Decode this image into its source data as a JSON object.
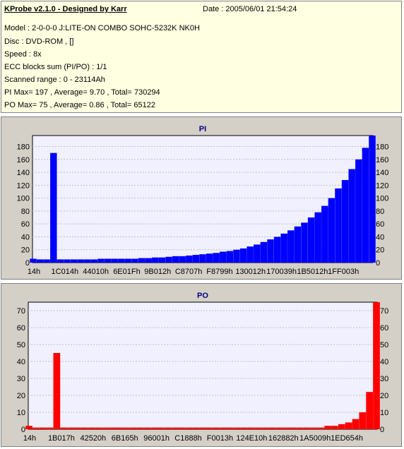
{
  "info": {
    "title": "KProbe v2.1.0 - Designed by Karr",
    "date": "Date : 2005/06/01 21:54:24",
    "lines": [
      "Model : 2-0-0-0 J:LITE-ON COMBO SOHC-5232K NK0H",
      "Disc : DVD-ROM ,  []",
      "Speed : 8x",
      "ECC blocks sum (PI/PO) : 1/1",
      "Scanned range : 0 - 23114Ah",
      "PI Max= 197 , Average= 9.70 , Total= 730294",
      "PO Max= 75 , Average= 0.86 , Total= 65122"
    ]
  },
  "chart_data": [
    {
      "type": "bar",
      "title": "PI",
      "color": "#0000ff",
      "ylim": [
        0,
        197
      ],
      "yticks": [
        0,
        20,
        40,
        60,
        80,
        100,
        120,
        140,
        160,
        180
      ],
      "xticks": [
        "14h",
        "1C014h",
        "44010h",
        "6E01Fh",
        "9B012h",
        "C8707h",
        "F8799h",
        "130012h",
        "170039h",
        "1B5012h",
        "1FF003h"
      ],
      "x": [
        0,
        2,
        4,
        6,
        8,
        10,
        12,
        14,
        16,
        18,
        20,
        22,
        24,
        26,
        28,
        30,
        32,
        34,
        36,
        38,
        40,
        42,
        44,
        46,
        48,
        50,
        52,
        54,
        56,
        58,
        60,
        62,
        64,
        66,
        68,
        70,
        72,
        74,
        76,
        78,
        80,
        82,
        84,
        86,
        88,
        90,
        92,
        94,
        96,
        98,
        100
      ],
      "values": [
        6,
        5,
        5,
        170,
        5,
        5,
        5,
        5,
        5,
        5,
        6,
        6,
        6,
        6,
        6,
        6,
        7,
        7,
        8,
        8,
        9,
        10,
        10,
        11,
        12,
        13,
        14,
        15,
        17,
        18,
        20,
        22,
        25,
        28,
        32,
        36,
        40,
        45,
        50,
        56,
        62,
        70,
        78,
        88,
        100,
        115,
        128,
        145,
        160,
        178,
        197
      ]
    },
    {
      "type": "bar",
      "title": "PO",
      "color": "#ff0000",
      "ylim": [
        0,
        75
      ],
      "yticks": [
        0,
        10,
        20,
        30,
        40,
        50,
        60,
        70
      ],
      "xticks": [
        "14h",
        "1B017h",
        "42520h",
        "6B165h",
        "96001h",
        "C1888h",
        "F0013h",
        "124E10h",
        "162882h",
        "1A5009h",
        "1ED654h"
      ],
      "x": [
        0,
        2,
        4,
        6,
        8,
        10,
        12,
        14,
        16,
        18,
        20,
        22,
        24,
        26,
        28,
        30,
        32,
        34,
        36,
        38,
        40,
        42,
        44,
        46,
        48,
        50,
        52,
        54,
        56,
        58,
        60,
        62,
        64,
        66,
        68,
        70,
        72,
        74,
        76,
        78,
        80,
        82,
        84,
        86,
        88,
        90,
        92,
        94,
        96,
        98,
        100
      ],
      "values": [
        2,
        1,
        1,
        1,
        45,
        1,
        1,
        1,
        1,
        1,
        1,
        1,
        1,
        1,
        1,
        1,
        1,
        1,
        1,
        1,
        1,
        1,
        1,
        1,
        1,
        1,
        1,
        1,
        1,
        1,
        1,
        1,
        1,
        1,
        1,
        1,
        1,
        1,
        1,
        1,
        1,
        1,
        1,
        2,
        2,
        3,
        4,
        6,
        10,
        22,
        75
      ]
    }
  ]
}
